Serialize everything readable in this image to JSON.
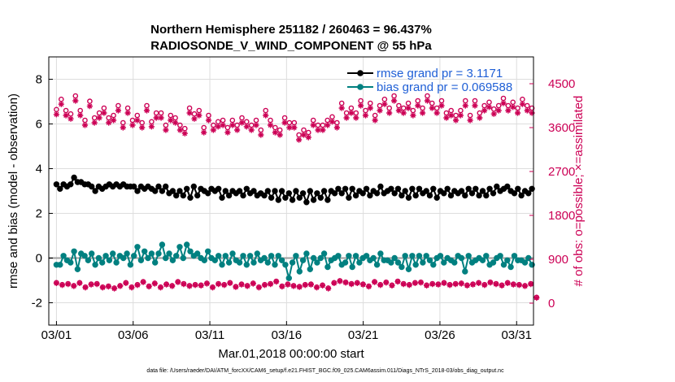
{
  "chart_data": {
    "type": "line",
    "title_line1": "Northern Hemisphere 251182 / 260463 = 96.437%",
    "title_line2": "RADIOSONDE_V_WIND_COMPONENT @ 55 hPa",
    "xlabel": "Mar.01,2018 00:00:00 start",
    "ylabel": "rmse and bias (model - observation)",
    "y2label": "# of obs: o=possible; ×=assimilated",
    "footnote": "data file: /Users/raeder/DAI/ATM_forcXX/CAM6_setup/f.e21.FHIST_BGC.f09_025.CAM6assim.011/Diags_NTrS_2018-03/obs_diag_output.nc",
    "xlim": [
      0.5,
      32.1
    ],
    "ylim": [
      -3,
      9
    ],
    "y2lim": [
      -450,
      5050
    ],
    "xticks": [
      1,
      6,
      11,
      16,
      21,
      26,
      31
    ],
    "xtick_labels": [
      "03/01",
      "03/06",
      "03/11",
      "03/16",
      "03/21",
      "03/26",
      "03/31"
    ],
    "yticks": [
      -2,
      0,
      2,
      4,
      6,
      8
    ],
    "ytick_labels": [
      "-2",
      "0",
      "2",
      "4",
      "6",
      "8"
    ],
    "y2ticks": [
      0,
      900,
      1800,
      2700,
      3600,
      4500
    ],
    "y2tick_labels": [
      "0",
      "900",
      "1800",
      "2700",
      "3600",
      "4500"
    ],
    "legend": {
      "placement": "top-right",
      "entries": [
        {
          "label": "rmse grand pr = 3.1171",
          "color": "#000000"
        },
        {
          "label": "bias grand pr = 0.069588",
          "color": "#008080"
        }
      ]
    },
    "colors": {
      "rmse": "#000000",
      "bias": "#008080",
      "obs": "#cc0055",
      "zero_line": "#9e9e9e",
      "grid": "#dddddd"
    },
    "series": [
      {
        "name": "rmse",
        "axis": "left",
        "values": [
          3.3,
          3.1,
          3.3,
          3.2,
          3.3,
          3.6,
          3.4,
          3.4,
          3.3,
          3.3,
          3.2,
          3.0,
          3.2,
          3.1,
          3.2,
          3.3,
          3.2,
          3.3,
          3.2,
          3.3,
          3.2,
          3.2,
          3.2,
          3.0,
          3.2,
          3.1,
          3.2,
          3.1,
          3.0,
          3.2,
          3.0,
          3.2,
          2.9,
          3.0,
          2.8,
          3.0,
          2.8,
          3.1,
          2.7,
          3.2,
          2.8,
          3.1,
          3.0,
          2.9,
          3.1,
          3.0,
          3.1,
          2.7,
          3.0,
          2.8,
          3.0,
          2.9,
          3.0,
          2.8,
          3.1,
          2.9,
          3.0,
          2.8,
          2.9,
          2.8,
          3.0,
          2.7,
          3.0,
          2.6,
          3.0,
          2.7,
          2.9,
          2.6,
          3.0,
          2.7,
          2.9,
          2.5,
          3.0,
          2.6,
          2.9,
          2.7,
          3.0,
          2.6,
          3.0,
          2.9,
          3.1,
          2.9,
          3.1,
          2.7,
          3.1,
          2.8,
          3.0,
          2.9,
          3.1,
          2.8,
          3.0,
          2.9,
          3.2,
          2.9,
          3.0,
          3.1,
          2.9,
          3.1,
          2.8,
          3.0,
          2.7,
          3.1,
          2.8,
          3.1,
          2.9,
          3.0,
          2.8,
          3.1,
          2.7,
          3.0,
          2.9,
          3.1,
          2.8,
          3.0,
          2.9,
          3.0,
          2.8,
          3.1,
          2.9,
          3.1,
          2.8,
          3.0,
          2.8,
          3.1,
          2.9,
          3.2,
          3.0,
          3.1,
          3.2,
          3.0,
          2.9,
          3.1,
          2.8,
          3.0,
          2.9,
          3.1
        ]
      },
      {
        "name": "bias",
        "axis": "left",
        "values": [
          -0.3,
          -0.3,
          0.1,
          -0.1,
          -0.2,
          0.3,
          -0.5,
          0.2,
          0.1,
          -0.1,
          0.2,
          -0.3,
          0.0,
          -0.2,
          0.1,
          -0.1,
          0.2,
          -0.2,
          0.1,
          0.0,
          0.2,
          -0.3,
          0.1,
          0.5,
          -0.1,
          0.3,
          0.0,
          0.2,
          -0.2,
          0.2,
          0.6,
          0.0,
          0.2,
          -0.1,
          0.1,
          0.5,
          0.0,
          0.6,
          0.3,
          0.1,
          0.2,
          0.0,
          -0.1,
          0.3,
          0.0,
          -0.1,
          0.1,
          -0.3,
          0.1,
          -0.2,
          0.2,
          -0.1,
          -0.2,
          0.1,
          -0.3,
          0.1,
          -0.2,
          0.2,
          -0.1,
          0.0,
          -0.2,
          0.1,
          -0.3,
          0.1,
          -0.1,
          -0.3,
          -0.9,
          -0.2,
          0.1,
          -0.6,
          -0.1,
          0.2,
          -0.5,
          0.0,
          -0.2,
          0.0,
          0.2,
          -0.4,
          -0.1,
          0.0,
          0.1,
          -0.3,
          -0.2,
          0.1,
          -0.4,
          0.1,
          -0.2,
          0.0,
          0.1,
          -0.1,
          0.0,
          -0.3,
          0.2,
          -0.1,
          -0.1,
          -0.2,
          0.0,
          -0.2,
          -0.4,
          0.1,
          -0.5,
          0.1,
          -0.3,
          0.1,
          -0.2,
          0.1,
          -0.1,
          -0.3,
          0.0,
          0.1,
          -0.2,
          0.0,
          -0.1,
          -0.2,
          0.1,
          0.0,
          -0.6,
          0.1,
          -0.2,
          -0.1,
          0.0,
          -0.1,
          0.1,
          -0.3,
          -0.2,
          0.0,
          0.1,
          -0.3,
          -0.1,
          -0.4,
          0.1,
          -0.1,
          -0.1,
          -0.2,
          0.0,
          -0.3
        ]
      },
      {
        "name": "obs_possible",
        "axis": "right",
        "values": [
          3970,
          4180,
          3950,
          3880,
          4250,
          3950,
          3750,
          4140,
          3800,
          3900,
          4000,
          3800,
          3850,
          4050,
          3700,
          4000,
          3750,
          3850,
          3700,
          4050,
          3720,
          3900,
          3900,
          3650,
          3850,
          3800,
          3650,
          3580,
          4000,
          3880,
          3950,
          3600,
          3850,
          3650,
          3720,
          3750,
          3600,
          3750,
          3650,
          3800,
          3720,
          3650,
          3750,
          3550,
          3950,
          3750,
          3600,
          3550,
          3800,
          3700,
          3700,
          3450,
          3550,
          3500,
          3750,
          3650,
          3650,
          3750,
          3820,
          3700,
          4100,
          3900,
          4000,
          3900,
          4150,
          3950,
          4100,
          3850,
          4050,
          4180,
          4000,
          4250,
          4050,
          4000,
          4100,
          3950,
          4150,
          4000,
          4250,
          4100,
          4000,
          4150,
          3900,
          3950,
          3850,
          3950,
          4150,
          3850,
          4150,
          3900,
          4050,
          4120,
          3980,
          4050,
          4200,
          4050,
          4120,
          4000,
          4180,
          4050,
          4000
        ]
      },
      {
        "name": "obs_assimilated",
        "axis": "right",
        "values": [
          3870,
          4080,
          3850,
          3780,
          4150,
          3850,
          3650,
          4040,
          3700,
          3800,
          3900,
          3700,
          3750,
          3950,
          3600,
          3900,
          3650,
          3750,
          3600,
          3950,
          3620,
          3800,
          3800,
          3550,
          3750,
          3700,
          3550,
          3480,
          3900,
          3780,
          3850,
          3500,
          3750,
          3550,
          3620,
          3650,
          3500,
          3650,
          3550,
          3700,
          3620,
          3550,
          3650,
          3450,
          3850,
          3650,
          3500,
          3450,
          3700,
          3600,
          3600,
          3350,
          3450,
          3400,
          3650,
          3550,
          3550,
          3650,
          3720,
          3600,
          4000,
          3800,
          3900,
          3800,
          4050,
          3850,
          4000,
          3750,
          3950,
          4080,
          3900,
          4150,
          3950,
          3900,
          4000,
          3850,
          4050,
          3900,
          4150,
          4000,
          3900,
          4050,
          3800,
          3850,
          3750,
          3850,
          4050,
          3750,
          4050,
          3800,
          3950,
          4020,
          3880,
          3950,
          4100,
          3950,
          4020,
          3900,
          4080,
          3950,
          3900
        ]
      },
      {
        "name": "obs_low_possible",
        "axis": "right",
        "values": [
          420,
          380,
          400,
          360,
          420,
          330,
          390,
          400,
          330,
          350,
          310,
          360,
          420,
          330,
          380,
          440,
          350,
          410,
          330,
          390,
          360,
          440,
          400,
          360,
          380,
          370,
          410,
          330,
          400,
          380,
          420,
          340,
          390,
          360,
          410,
          330,
          380,
          400,
          450,
          350,
          390,
          360,
          340,
          380,
          390,
          330,
          370,
          310,
          420,
          460,
          430,
          400,
          420,
          390,
          350,
          440,
          380,
          430,
          370,
          450,
          400,
          380,
          420,
          430,
          370,
          400,
          390,
          420,
          380,
          400,
          410,
          370,
          390,
          420,
          380,
          430,
          400,
          370,
          420,
          390,
          380,
          360,
          400,
          120
        ]
      },
      {
        "name": "obs_low_assimilated",
        "axis": "right",
        "values": [
          410,
          370,
          390,
          350,
          410,
          320,
          380,
          390,
          320,
          340,
          300,
          350,
          410,
          320,
          370,
          430,
          340,
          400,
          320,
          380,
          350,
          430,
          390,
          350,
          370,
          360,
          400,
          320,
          390,
          370,
          410,
          330,
          380,
          350,
          400,
          320,
          370,
          390,
          440,
          340,
          380,
          350,
          330,
          370,
          380,
          320,
          360,
          300,
          410,
          450,
          420,
          390,
          410,
          380,
          340,
          430,
          370,
          420,
          360,
          440,
          390,
          370,
          410,
          420,
          360,
          390,
          380,
          410,
          370,
          390,
          400,
          360,
          380,
          410,
          370,
          420,
          390,
          360,
          410,
          380,
          370,
          350,
          390,
          110
        ]
      }
    ]
  }
}
